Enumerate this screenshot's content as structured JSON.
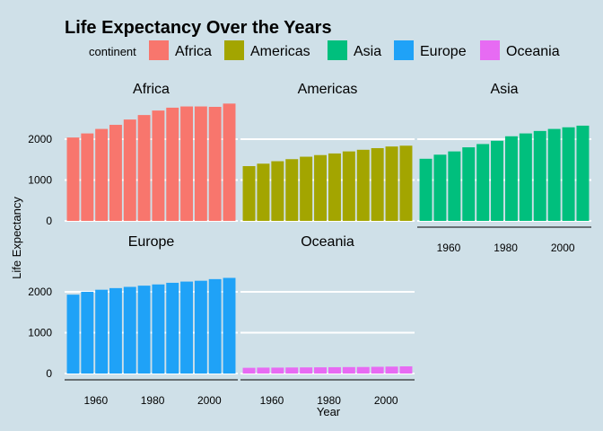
{
  "chart_data": {
    "type": "bar",
    "title": "Life Expectancy Over the Years",
    "xlabel": "Year",
    "ylabel": "Life Expectancy",
    "legend": {
      "title": "continent",
      "position": "top"
    },
    "x": [
      1952,
      1957,
      1962,
      1967,
      1972,
      1977,
      1982,
      1987,
      1992,
      1997,
      2002,
      2007
    ],
    "x_ticks": [
      "1960",
      "1980",
      "2000"
    ],
    "y_ticks": [
      "0",
      "1000",
      "2000"
    ],
    "ylim": [
      0,
      2900
    ],
    "xlim": [
      1949,
      2010
    ],
    "series": [
      {
        "name": "Africa",
        "color": "#F8766D",
        "values": [
          2040,
          2140,
          2250,
          2350,
          2480,
          2590,
          2700,
          2770,
          2800,
          2800,
          2790,
          2870
        ]
      },
      {
        "name": "Americas",
        "color": "#A3A500",
        "values": [
          1340,
          1400,
          1460,
          1510,
          1570,
          1610,
          1650,
          1700,
          1740,
          1780,
          1820,
          1840
        ]
      },
      {
        "name": "Asia",
        "color": "#00BF7D",
        "values": [
          1520,
          1620,
          1700,
          1800,
          1880,
          1960,
          2070,
          2140,
          2200,
          2250,
          2290,
          2330
        ]
      },
      {
        "name": "Europe",
        "color": "#1FA2F7",
        "values": [
          1930,
          2000,
          2050,
          2090,
          2120,
          2150,
          2180,
          2220,
          2250,
          2270,
          2310,
          2340
        ]
      },
      {
        "name": "Oceania",
        "color": "#E76BF3",
        "values": [
          140,
          145,
          145,
          148,
          150,
          152,
          155,
          158,
          160,
          165,
          170,
          175
        ]
      }
    ]
  }
}
